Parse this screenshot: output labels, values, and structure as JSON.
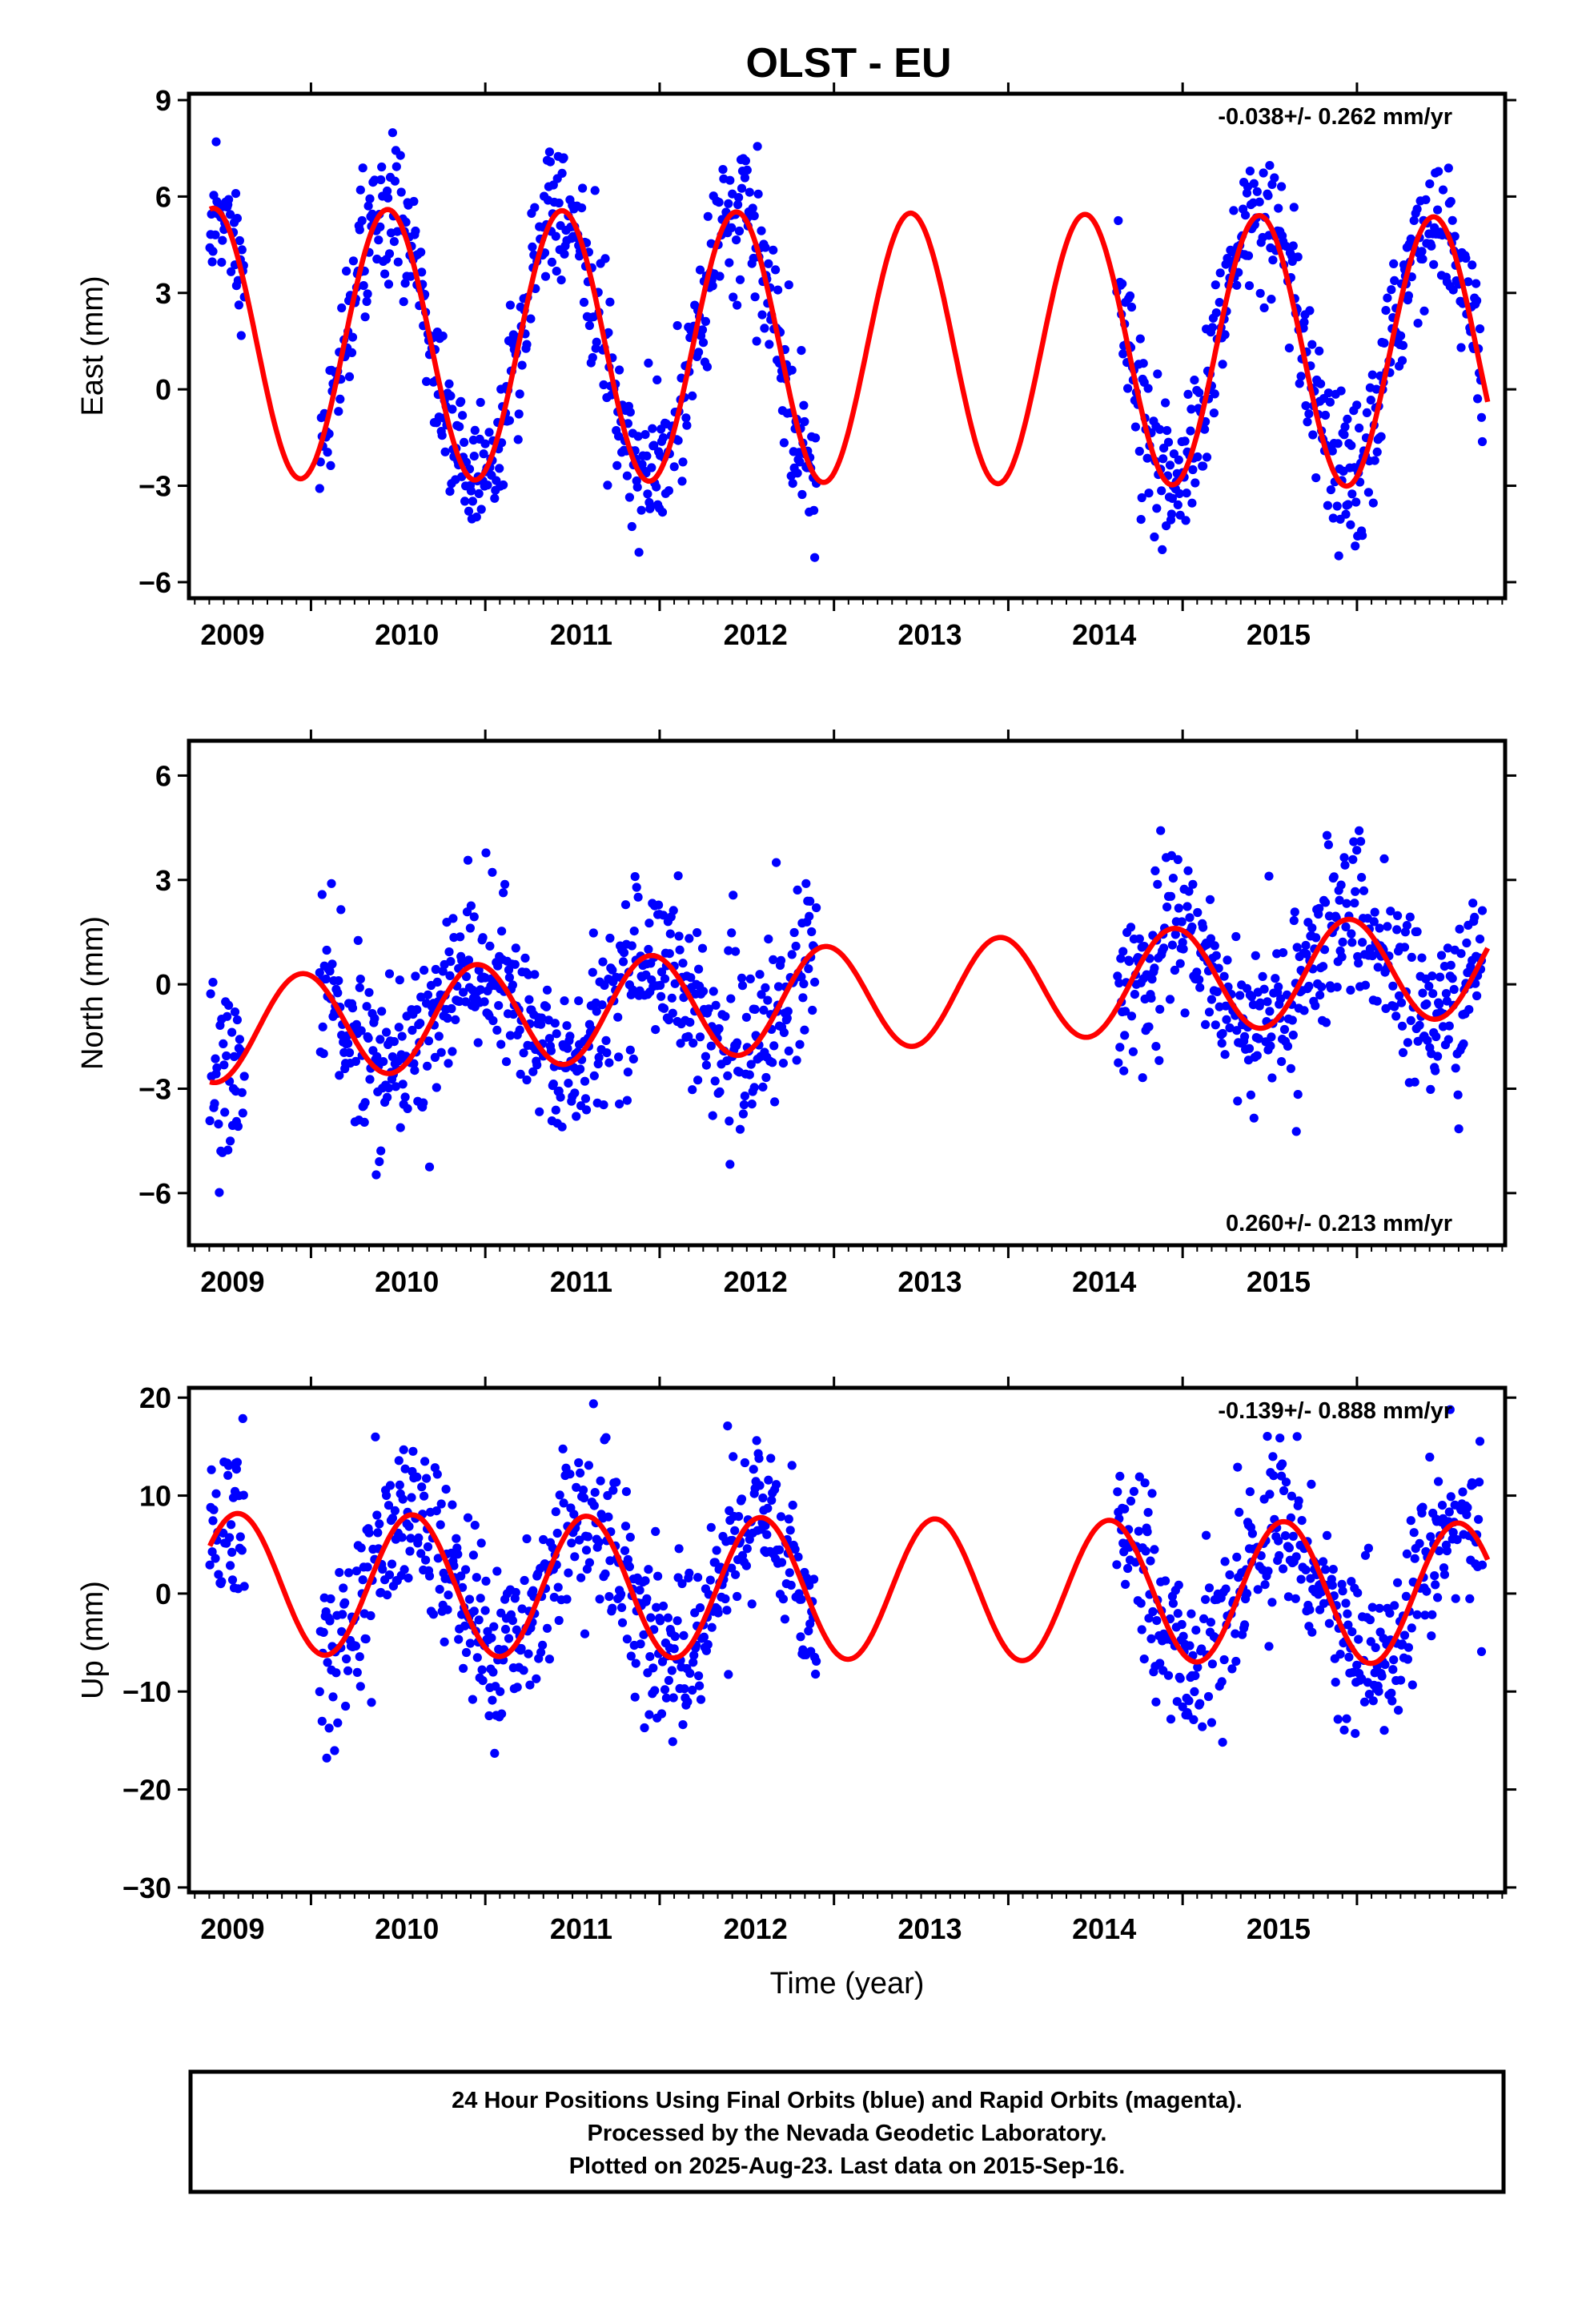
{
  "title": "OLST - EU",
  "colors": {
    "final_orbits": "#0000ff",
    "model": "#ff0000",
    "axes": "#000000"
  },
  "chart_data": [
    {
      "type": "scatter",
      "panel": "east",
      "ylabel": "East (mm)",
      "xlabel": "",
      "xlim": [
        2008.3,
        2015.85
      ],
      "ylim": [
        -6.5,
        9.2
      ],
      "yticks": [
        -6,
        -3,
        0,
        3,
        6,
        9
      ],
      "ytick_labels": [
        "−6",
        "−3",
        "0",
        "3",
        "6",
        "9"
      ],
      "xticks": [
        2009,
        2010,
        2011,
        2012,
        2013,
        2014,
        2015
      ],
      "xtick_labels": [
        "2009",
        "2010",
        "2011",
        "2012",
        "2013",
        "2014",
        "2015"
      ],
      "rate_text": "-0.038+/- 0.262 mm/yr",
      "rate_position": "top-right",
      "model": {
        "mean": 1.3,
        "amplitude": 4.2,
        "peak_year_fraction": 0.44,
        "trend": -0.038
      },
      "data_gaps": [
        [
          2008.62,
          2009.05
        ],
        [
          2011.9,
          2013.62
        ],
        [
          2015.72,
          2015.85
        ]
      ],
      "scatter_std": 1.1
    },
    {
      "type": "scatter",
      "panel": "north",
      "ylabel": "North (mm)",
      "xlabel": "",
      "xlim": [
        2008.3,
        2015.85
      ],
      "ylim": [
        -7.5,
        7.0
      ],
      "yticks": [
        -6,
        -3,
        0,
        3,
        6
      ],
      "ytick_labels": [
        "−6",
        "−3",
        "0",
        "3",
        "6"
      ],
      "xticks": [
        2009,
        2010,
        2011,
        2012,
        2013,
        2014,
        2015
      ],
      "xtick_labels": [
        "2009",
        "2010",
        "2011",
        "2012",
        "2013",
        "2014",
        "2015"
      ],
      "rate_text": "0.260+/- 0.213 mm/yr",
      "rate_position": "bottom-right",
      "model": {
        "mean": -0.4,
        "amplitude": 1.5,
        "peak_year_fraction": 0.95,
        "trend": 0.26
      },
      "data_gaps": [
        [
          2008.62,
          2009.05
        ],
        [
          2011.9,
          2013.62
        ],
        [
          2015.72,
          2015.85
        ]
      ],
      "scatter_std": 1.2
    },
    {
      "type": "scatter",
      "panel": "up",
      "ylabel": "Up (mm)",
      "xlabel": "Time (year)",
      "xlim": [
        2008.3,
        2015.85
      ],
      "ylim": [
        -30.5,
        21
      ],
      "yticks": [
        -30,
        -20,
        -10,
        0,
        10,
        20
      ],
      "ytick_labels": [
        "−30",
        "−20",
        "−10",
        "0",
        "10",
        "20"
      ],
      "xticks": [
        2009,
        2010,
        2011,
        2012,
        2013,
        2014,
        2015
      ],
      "xtick_labels": [
        "2009",
        "2010",
        "2011",
        "2012",
        "2013",
        "2014",
        "2015"
      ],
      "rate_text": "-0.139+/- 0.888 mm/yr",
      "rate_position": "top-right",
      "model": {
        "mean": 0.5,
        "amplitude": 7.2,
        "peak_year_fraction": 0.58,
        "trend": -0.139
      },
      "data_gaps": [
        [
          2008.62,
          2009.05
        ],
        [
          2011.9,
          2013.62
        ],
        [
          2015.72,
          2015.85
        ]
      ],
      "scatter_std": 4.2
    }
  ],
  "footer": {
    "line1": "24 Hour Positions Using Final Orbits (blue) and Rapid Orbits (magenta).",
    "line2": "Processed by the Nevada Geodetic Laboratory.",
    "line3": "Plotted on 2025-Aug-23. Last data on 2015-Sep-16."
  }
}
